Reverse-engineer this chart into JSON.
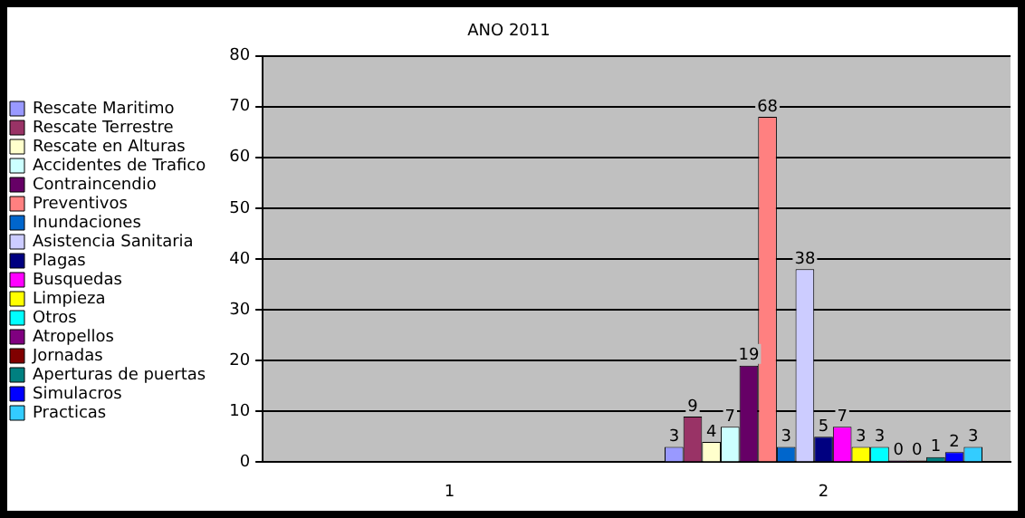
{
  "chart_data": {
    "type": "bar",
    "title": "ANO 2011",
    "categories": [
      "1",
      "2"
    ],
    "series": [
      {
        "name": "Rescate Maritimo",
        "color": "#9999ff",
        "values": [
          null,
          3
        ]
      },
      {
        "name": "Rescate Terrestre",
        "color": "#993366",
        "values": [
          null,
          9
        ]
      },
      {
        "name": "Rescate en Alturas",
        "color": "#ffffcc",
        "values": [
          null,
          4
        ]
      },
      {
        "name": "Accidentes de Trafico",
        "color": "#ccffff",
        "values": [
          null,
          7
        ]
      },
      {
        "name": "Contraincendio",
        "color": "#660066",
        "values": [
          null,
          19
        ]
      },
      {
        "name": "Preventivos",
        "color": "#ff8080",
        "values": [
          null,
          68
        ]
      },
      {
        "name": "Inundaciones",
        "color": "#0066cc",
        "values": [
          null,
          3
        ]
      },
      {
        "name": "Asistencia Sanitaria",
        "color": "#ccccff",
        "values": [
          null,
          38
        ]
      },
      {
        "name": "Plagas",
        "color": "#000080",
        "values": [
          null,
          5
        ]
      },
      {
        "name": "Busquedas",
        "color": "#ff00ff",
        "values": [
          null,
          7
        ]
      },
      {
        "name": "Limpieza",
        "color": "#ffff00",
        "values": [
          null,
          3
        ]
      },
      {
        "name": "Otros",
        "color": "#00ffff",
        "values": [
          null,
          3
        ]
      },
      {
        "name": "Atropellos",
        "color": "#800080",
        "values": [
          null,
          0
        ]
      },
      {
        "name": "Jornadas",
        "color": "#800000",
        "values": [
          null,
          0
        ]
      },
      {
        "name": "Aperturas de puertas",
        "color": "#008080",
        "values": [
          null,
          1
        ]
      },
      {
        "name": "Simulacros",
        "color": "#0000ff",
        "values": [
          null,
          2
        ]
      },
      {
        "name": "Practicas",
        "color": "#33ccff",
        "values": [
          null,
          3
        ]
      }
    ],
    "ylim": [
      0,
      80
    ],
    "yticks": [
      0,
      10,
      20,
      30,
      40,
      50,
      60,
      70,
      80
    ],
    "grid": "y",
    "legend": "left",
    "data_labels": true
  }
}
